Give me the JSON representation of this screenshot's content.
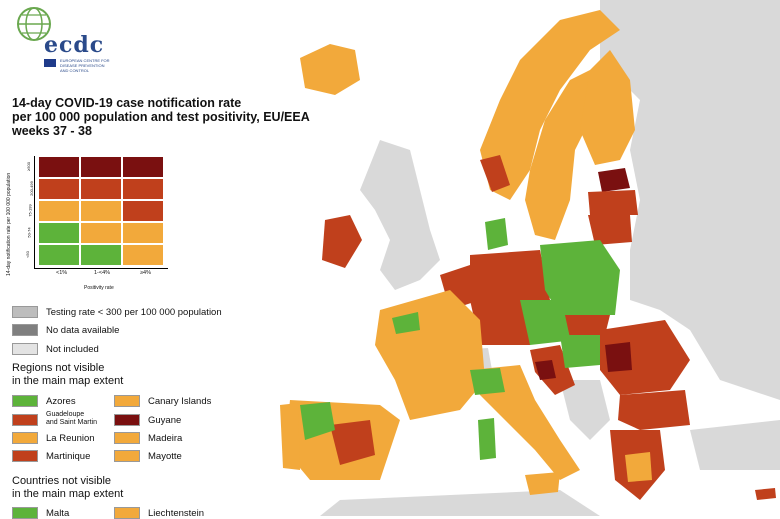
{
  "logo": {
    "name": "ecdc",
    "subtitle": "EUROPEAN CENTRE FOR DISEASE PREVENTION AND CONTROL"
  },
  "title": {
    "line1": "14-day COVID-19 case notification rate",
    "line2": "per 100 000 population and test positivity, EU/EEA",
    "line3": "weeks 37 - 38"
  },
  "matrix": {
    "y_axis_label": "14-day notification rate per 100 000 population",
    "x_axis_label": "Positivity rate",
    "row_labels": [
      "≥500",
      "200-499",
      "75-199",
      "50-74",
      "<50"
    ],
    "col_labels": [
      "<1%",
      "1-<4%",
      "≥4%"
    ],
    "colors": [
      [
        "#7a1010",
        "#7a1010",
        "#7a1010"
      ],
      [
        "#c0401c",
        "#c0401c",
        "#c0401c"
      ],
      [
        "#f2a93b",
        "#f2a93b",
        "#c0401c"
      ],
      [
        "#5db33a",
        "#f2a93b",
        "#f2a93b"
      ],
      [
        "#5db33a",
        "#5db33a",
        "#f2a93b"
      ]
    ]
  },
  "legend": {
    "testing_rate": {
      "label": "Testing rate < 300 per 100 000 population",
      "color": "#bdbdbd"
    },
    "no_data": {
      "label": "No data available",
      "color": "#7f7f7f"
    },
    "not_included": {
      "label": "Not included",
      "color": "#e3e3e3"
    }
  },
  "regions": {
    "heading1": "Regions not visible",
    "heading2": "in the main map extent",
    "items": [
      {
        "label": "Azores",
        "color": "#5db33a"
      },
      {
        "label": "Canary Islands",
        "color": "#f2a93b"
      },
      {
        "label": "Guadeloupe\nand Saint Martin",
        "color": "#c0401c"
      },
      {
        "label": "Guyane",
        "color": "#7a1010"
      },
      {
        "label": "La Reunion",
        "color": "#f2a93b"
      },
      {
        "label": "Madeira",
        "color": "#f2a93b"
      },
      {
        "label": "Martinique",
        "color": "#c0401c"
      },
      {
        "label": "Mayotte",
        "color": "#f2a93b"
      }
    ]
  },
  "countries": {
    "heading1": "Countries not visible",
    "heading2": "in the main map extent",
    "items": [
      {
        "label": "Malta",
        "color": "#5db33a"
      },
      {
        "label": "Liechtenstein",
        "color": "#f2a93b"
      }
    ]
  },
  "map_colors": {
    "sea": "#ffffff",
    "non_eu": "#d9d9d9",
    "green": "#5db33a",
    "orange": "#f2a93b",
    "red": "#c0401c",
    "darkred": "#7a1010"
  }
}
